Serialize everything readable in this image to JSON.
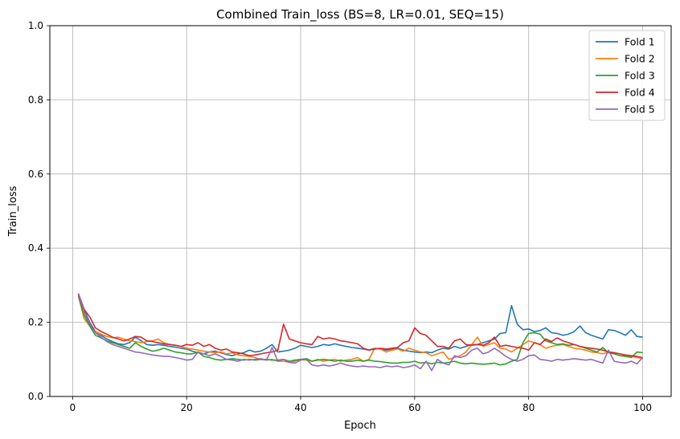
{
  "chart_data": {
    "type": "line",
    "title": "Combined Train_loss (BS=8, LR=0.01, SEQ=15)",
    "xlabel": "Epoch",
    "ylabel": "Train_loss",
    "xlim": [
      -4,
      105
    ],
    "ylim": [
      0,
      1.0
    ],
    "xticks": [
      0,
      20,
      40,
      60,
      80,
      100
    ],
    "yticks": [
      0.0,
      0.2,
      0.4,
      0.6,
      0.8,
      1.0
    ],
    "xtick_labels": [
      "0",
      "20",
      "40",
      "60",
      "80",
      "100"
    ],
    "ytick_labels": [
      "0.0",
      "0.2",
      "0.4",
      "0.6",
      "0.8",
      "1.0"
    ],
    "grid": true,
    "legend_position": "top-right",
    "series": [
      {
        "name": "Fold 1",
        "color": "#1f77b4",
        "values": [
          0.275,
          0.235,
          0.2,
          0.175,
          0.165,
          0.155,
          0.148,
          0.142,
          0.14,
          0.145,
          0.16,
          0.15,
          0.14,
          0.138,
          0.14,
          0.138,
          0.135,
          0.133,
          0.13,
          0.128,
          0.122,
          0.118,
          0.115,
          0.12,
          0.122,
          0.118,
          0.113,
          0.11,
          0.115,
          0.118,
          0.125,
          0.12,
          0.122,
          0.13,
          0.14,
          0.12,
          0.122,
          0.125,
          0.13,
          0.138,
          0.135,
          0.132,
          0.135,
          0.14,
          0.138,
          0.142,
          0.138,
          0.135,
          0.132,
          0.13,
          0.128,
          0.125,
          0.13,
          0.128,
          0.125,
          0.128,
          0.13,
          0.125,
          0.122,
          0.12,
          0.118,
          0.12,
          0.118,
          0.125,
          0.13,
          0.128,
          0.135,
          0.13,
          0.135,
          0.14,
          0.14,
          0.145,
          0.15,
          0.155,
          0.17,
          0.172,
          0.245,
          0.195,
          0.18,
          0.182,
          0.175,
          0.178,
          0.185,
          0.172,
          0.17,
          0.165,
          0.168,
          0.175,
          0.19,
          0.172,
          0.165,
          0.16,
          0.155,
          0.18,
          0.178,
          0.172,
          0.165,
          0.18,
          0.162,
          0.16
        ]
      },
      {
        "name": "Fold 2",
        "color": "#ff7f0e",
        "values": [
          0.272,
          0.21,
          0.19,
          0.175,
          0.168,
          0.162,
          0.158,
          0.16,
          0.155,
          0.15,
          0.148,
          0.145,
          0.148,
          0.15,
          0.155,
          0.145,
          0.14,
          0.138,
          0.135,
          0.13,
          0.128,
          0.125,
          0.122,
          0.12,
          0.118,
          0.12,
          0.115,
          0.118,
          0.112,
          0.11,
          0.108,
          0.105,
          0.1,
          0.098,
          0.1,
          0.095,
          0.095,
          0.092,
          0.095,
          0.1,
          0.098,
          0.095,
          0.1,
          0.095,
          0.098,
          0.1,
          0.095,
          0.098,
          0.1,
          0.105,
          0.095,
          0.1,
          0.13,
          0.128,
          0.12,
          0.125,
          0.128,
          0.122,
          0.13,
          0.125,
          0.12,
          0.118,
          0.11,
          0.115,
          0.12,
          0.1,
          0.105,
          0.11,
          0.12,
          0.14,
          0.16,
          0.135,
          0.14,
          0.145,
          0.13,
          0.128,
          0.12,
          0.13,
          0.14,
          0.15,
          0.145,
          0.14,
          0.13,
          0.135,
          0.138,
          0.14,
          0.135,
          0.13,
          0.128,
          0.125,
          0.12,
          0.118,
          0.115,
          0.12,
          0.118,
          0.115,
          0.11,
          0.108,
          0.105,
          0.102
        ]
      },
      {
        "name": "Fold 3",
        "color": "#2ca02c",
        "values": [
          0.27,
          0.22,
          0.19,
          0.165,
          0.158,
          0.15,
          0.145,
          0.14,
          0.135,
          0.13,
          0.145,
          0.135,
          0.128,
          0.122,
          0.125,
          0.13,
          0.125,
          0.12,
          0.118,
          0.115,
          0.115,
          0.12,
          0.108,
          0.105,
          0.1,
          0.098,
          0.1,
          0.102,
          0.1,
          0.098,
          0.1,
          0.098,
          0.1,
          0.1,
          0.098,
          0.098,
          0.1,
          0.095,
          0.098,
          0.1,
          0.102,
          0.095,
          0.098,
          0.1,
          0.098,
          0.095,
          0.098,
          0.095,
          0.095,
          0.098,
          0.095,
          0.098,
          0.095,
          0.094,
          0.092,
          0.09,
          0.09,
          0.092,
          0.092,
          0.095,
          0.09,
          0.092,
          0.088,
          0.092,
          0.09,
          0.092,
          0.095,
          0.09,
          0.088,
          0.09,
          0.088,
          0.087,
          0.088,
          0.09,
          0.085,
          0.088,
          0.095,
          0.1,
          0.145,
          0.17,
          0.172,
          0.168,
          0.15,
          0.145,
          0.14,
          0.142,
          0.138,
          0.14,
          0.135,
          0.13,
          0.125,
          0.12,
          0.132,
          0.118,
          0.115,
          0.11,
          0.108,
          0.105,
          0.12,
          0.118
        ]
      },
      {
        "name": "Fold 4",
        "color": "#d62728",
        "values": [
          0.278,
          0.235,
          0.215,
          0.185,
          0.175,
          0.168,
          0.16,
          0.155,
          0.15,
          0.155,
          0.162,
          0.16,
          0.15,
          0.148,
          0.145,
          0.142,
          0.14,
          0.138,
          0.135,
          0.14,
          0.138,
          0.145,
          0.135,
          0.14,
          0.13,
          0.125,
          0.128,
          0.12,
          0.118,
          0.115,
          0.11,
          0.112,
          0.115,
          0.118,
          0.12,
          0.125,
          0.195,
          0.155,
          0.15,
          0.145,
          0.142,
          0.14,
          0.162,
          0.155,
          0.158,
          0.155,
          0.15,
          0.148,
          0.145,
          0.142,
          0.13,
          0.125,
          0.128,
          0.13,
          0.128,
          0.13,
          0.132,
          0.145,
          0.15,
          0.185,
          0.17,
          0.165,
          0.15,
          0.135,
          0.135,
          0.13,
          0.15,
          0.155,
          0.14,
          0.138,
          0.14,
          0.138,
          0.145,
          0.16,
          0.135,
          0.138,
          0.135,
          0.132,
          0.13,
          0.125,
          0.145,
          0.14,
          0.155,
          0.148,
          0.158,
          0.15,
          0.145,
          0.14,
          0.135,
          0.132,
          0.13,
          0.128,
          0.125,
          0.12,
          0.118,
          0.115,
          0.112,
          0.11,
          0.108,
          0.105
        ]
      },
      {
        "name": "Fold 5",
        "color": "#9467bd",
        "values": [
          0.275,
          0.23,
          0.195,
          0.172,
          0.16,
          0.148,
          0.14,
          0.135,
          0.13,
          0.125,
          0.12,
          0.118,
          0.115,
          0.112,
          0.11,
          0.108,
          0.108,
          0.105,
          0.102,
          0.098,
          0.1,
          0.12,
          0.115,
          0.11,
          0.115,
          0.108,
          0.1,
          0.098,
          0.095,
          0.1,
          0.098,
          0.1,
          0.102,
          0.098,
          0.132,
          0.095,
          0.1,
          0.092,
          0.09,
          0.098,
          0.1,
          0.085,
          0.082,
          0.085,
          0.082,
          0.085,
          0.09,
          0.085,
          0.082,
          0.08,
          0.082,
          0.08,
          0.08,
          0.078,
          0.082,
          0.08,
          0.082,
          0.078,
          0.08,
          0.085,
          0.075,
          0.095,
          0.07,
          0.1,
          0.09,
          0.085,
          0.11,
          0.105,
          0.11,
          0.125,
          0.13,
          0.115,
          0.12,
          0.13,
          0.12,
          0.108,
          0.1,
          0.095,
          0.1,
          0.11,
          0.112,
          0.1,
          0.098,
          0.095,
          0.1,
          0.098,
          0.1,
          0.102,
          0.1,
          0.098,
          0.1,
          0.095,
          0.09,
          0.125,
          0.095,
          0.092,
          0.09,
          0.095,
          0.088,
          0.105
        ]
      }
    ]
  }
}
